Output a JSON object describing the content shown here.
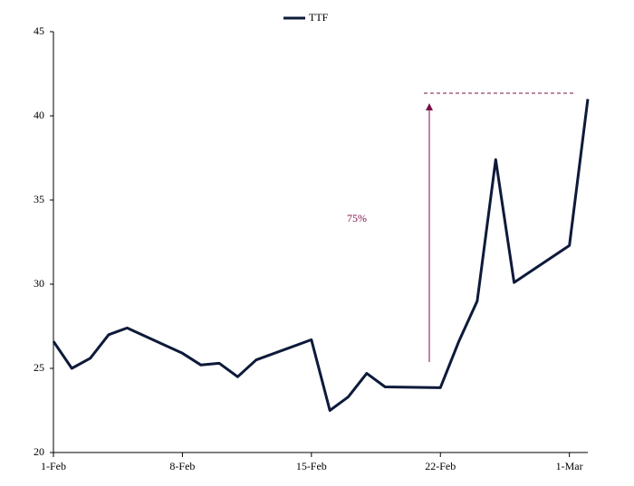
{
  "chart_data": {
    "type": "line",
    "x": [
      "1-Feb",
      "2-Feb",
      "3-Feb",
      "4-Feb",
      "5-Feb",
      "8-Feb",
      "9-Feb",
      "10-Feb",
      "11-Feb",
      "12-Feb",
      "15-Feb",
      "16-Feb",
      "17-Feb",
      "18-Feb",
      "19-Feb",
      "22-Feb",
      "23-Feb",
      "24-Feb",
      "25-Feb",
      "26-Feb",
      "1-Mar",
      "2-Mar"
    ],
    "series": [
      {
        "name": "TTF",
        "color": "#0d1a3a",
        "values": [
          26.6,
          25.0,
          25.6,
          27.0,
          27.4,
          25.9,
          25.2,
          25.3,
          24.5,
          25.5,
          26.7,
          22.5,
          23.3,
          24.7,
          23.9,
          23.85,
          26.6,
          29.0,
          37.4,
          30.1,
          32.3,
          41.0
        ]
      }
    ],
    "xlim": [
      "1-Feb",
      "2-Mar"
    ],
    "xticks": [
      "1-Feb",
      "8-Feb",
      "15-Feb",
      "22-Feb",
      "1-Mar"
    ],
    "ylim": [
      20,
      45
    ],
    "yticks": [
      20,
      25,
      30,
      35,
      40,
      45
    ],
    "grid": false,
    "legend": "top",
    "annotation": {
      "text": "75%",
      "color": "#7a0f4a"
    }
  }
}
